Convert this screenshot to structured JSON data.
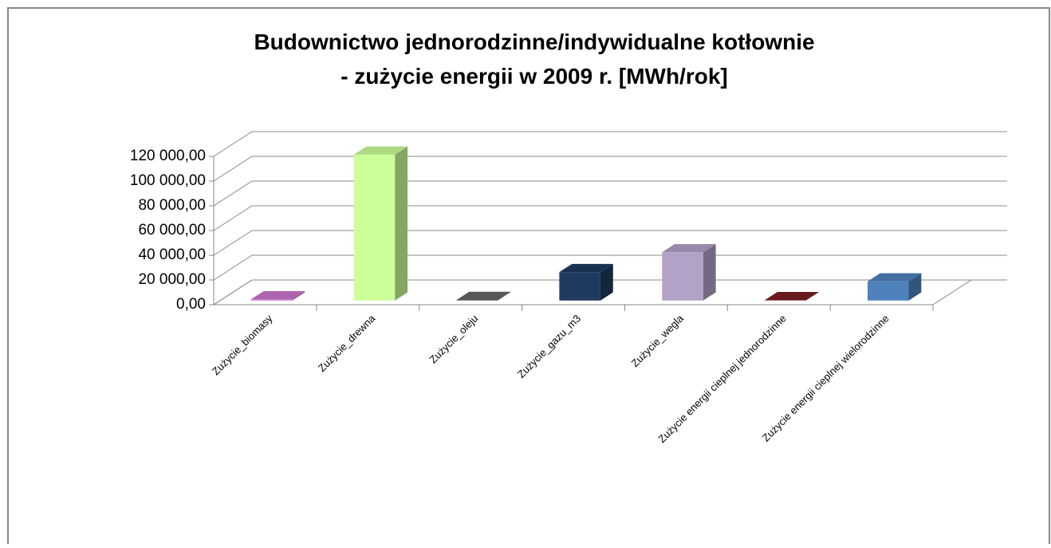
{
  "chart_data": {
    "type": "bar3d",
    "title": "Budownictwo jednorodzinne/indywidualne kotłownie",
    "subtitle": "- zużycie energii  w 2009 r. [MWh/rok]",
    "categories": [
      "Zużycie_biomasy",
      "Zużycie_drewna",
      "Zużycie_oleju",
      "Zużycie_gazu_m3",
      "Zużycie_wegla",
      "Zużycie energii cieplnej jednorodzinne",
      "Zużycie energii cieplnej wielorodzinne"
    ],
    "values": [
      1000,
      118000,
      500,
      23000,
      39000,
      300,
      15500
    ],
    "colors": [
      "#cc77cc",
      "#ccff99",
      "#666666",
      "#1f3a5f",
      "#b3a2c7",
      "#7b2020",
      "#4f81bd"
    ],
    "ylim": [
      0,
      120000
    ],
    "yticks": [
      {
        "value": 0,
        "label": "0,00"
      },
      {
        "value": 20000,
        "label": "20 000,00"
      },
      {
        "value": 40000,
        "label": "40 000,00"
      },
      {
        "value": 60000,
        "label": "60 000,00"
      },
      {
        "value": 80000,
        "label": "80 000,00"
      },
      {
        "value": 100000,
        "label": "100 000,00"
      },
      {
        "value": 120000,
        "label": "120 000,00"
      }
    ],
    "grid": true
  }
}
